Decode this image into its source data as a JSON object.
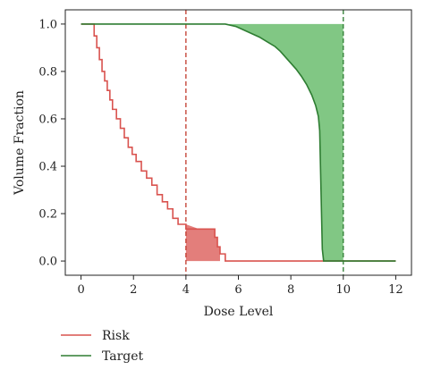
{
  "chart_data": {
    "type": "line",
    "title": "",
    "xlabel": "Dose Level",
    "ylabel": "Volume Fraction",
    "xlim": [
      -0.6,
      12.6
    ],
    "ylim": [
      -0.06,
      1.06
    ],
    "xticks": [
      0,
      2,
      4,
      6,
      8,
      10,
      12
    ],
    "yticks": [
      0.0,
      0.2,
      0.4,
      0.6,
      0.8,
      1.0
    ],
    "xtick_labels": [
      "0",
      "2",
      "4",
      "6",
      "8",
      "10",
      "12"
    ],
    "ytick_labels": [
      "0.0",
      "0.2",
      "0.4",
      "0.6",
      "0.8",
      "1.0"
    ],
    "grid": false,
    "legend_position": "bottom-left",
    "vlines": [
      {
        "x": 4,
        "color": "#c0392b",
        "style": "dashed"
      },
      {
        "x": 10,
        "color": "#2e7d32",
        "style": "dashed"
      }
    ],
    "series": [
      {
        "name": "Risk",
        "color": "#d9534f",
        "x": [
          0,
          0.4,
          0.5,
          0.6,
          0.7,
          0.8,
          0.9,
          1.0,
          1.1,
          1.2,
          1.35,
          1.5,
          1.65,
          1.8,
          1.95,
          2.1,
          2.3,
          2.5,
          2.7,
          2.9,
          3.1,
          3.3,
          3.5,
          3.7,
          4.0,
          4.5,
          5.0,
          5.1,
          5.2,
          5.3,
          5.5,
          6.0,
          8.0,
          9.0,
          10.0,
          12.0
        ],
        "y": [
          1.0,
          1.0,
          0.95,
          0.9,
          0.85,
          0.8,
          0.76,
          0.72,
          0.68,
          0.64,
          0.6,
          0.56,
          0.52,
          0.48,
          0.45,
          0.42,
          0.38,
          0.35,
          0.32,
          0.28,
          0.25,
          0.22,
          0.18,
          0.155,
          0.135,
          0.135,
          0.135,
          0.1,
          0.06,
          0.03,
          0.0,
          0.0,
          0.0,
          0.0,
          0.0,
          0.0
        ]
      },
      {
        "name": "Target",
        "color": "#2e7d32",
        "x": [
          0,
          2,
          4,
          5.0,
          5.5,
          5.9,
          6.2,
          6.5,
          6.8,
          7.1,
          7.4,
          7.6,
          7.8,
          8.0,
          8.2,
          8.4,
          8.6,
          8.8,
          8.95,
          9.05,
          9.1,
          9.15,
          9.2,
          9.25,
          9.3,
          9.5,
          10.0,
          12.0
        ],
        "y": [
          1.0,
          1.0,
          1.0,
          1.0,
          1.0,
          0.99,
          0.975,
          0.96,
          0.945,
          0.925,
          0.905,
          0.885,
          0.86,
          0.835,
          0.81,
          0.78,
          0.745,
          0.7,
          0.655,
          0.61,
          0.55,
          0.3,
          0.05,
          0.0,
          0.0,
          0.0,
          0.0,
          0.0
        ]
      }
    ],
    "shaded_regions": [
      {
        "series": "Risk",
        "from_x": 4,
        "to_x": 5.3,
        "to_y": 0.0,
        "color": "#d9534f",
        "opacity": 0.75
      },
      {
        "series": "Target",
        "from_x": 5.0,
        "to_x": 10.0,
        "to_y": 1.0,
        "color": "#4caf50",
        "opacity": 0.7
      }
    ]
  }
}
